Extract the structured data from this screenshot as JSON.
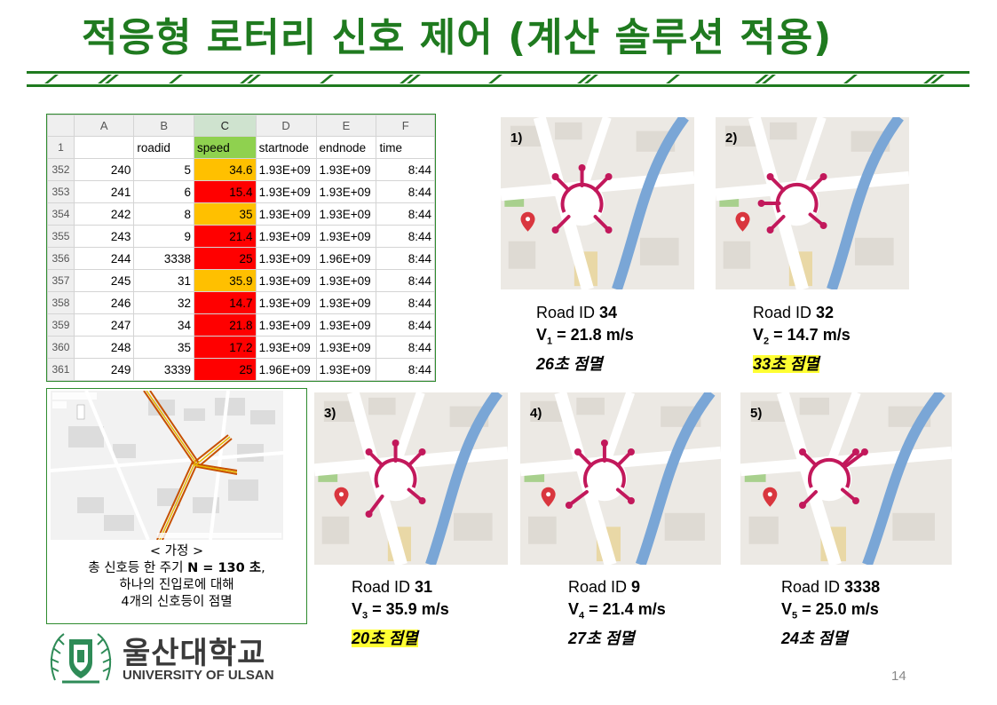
{
  "title": "적응형 로터리 신호 제어 (계산 솔루션 적용)",
  "spreadsheet": {
    "columns": [
      "A",
      "B",
      "C",
      "D",
      "E",
      "F"
    ],
    "header_row_number": "1",
    "headers": [
      "",
      "roadid",
      "speed",
      "startnode",
      "endnode",
      "time"
    ],
    "rows": [
      {
        "rownum": "352",
        "a": "240",
        "roadid": "5",
        "speed": "34.6",
        "speed_color": "#ffc000",
        "startnode": "1.93E+09",
        "endnode": "1.93E+09",
        "time": "8:44"
      },
      {
        "rownum": "353",
        "a": "241",
        "roadid": "6",
        "speed": "15.4",
        "speed_color": "#ff0000",
        "startnode": "1.93E+09",
        "endnode": "1.93E+09",
        "time": "8:44"
      },
      {
        "rownum": "354",
        "a": "242",
        "roadid": "8",
        "speed": "35",
        "speed_color": "#ffc000",
        "startnode": "1.93E+09",
        "endnode": "1.93E+09",
        "time": "8:44"
      },
      {
        "rownum": "355",
        "a": "243",
        "roadid": "9",
        "speed": "21.4",
        "speed_color": "#ff0000",
        "startnode": "1.93E+09",
        "endnode": "1.93E+09",
        "time": "8:44"
      },
      {
        "rownum": "356",
        "a": "244",
        "roadid": "3338",
        "speed": "25",
        "speed_color": "#ff0000",
        "startnode": "1.93E+09",
        "endnode": "1.96E+09",
        "time": "8:44"
      },
      {
        "rownum": "357",
        "a": "245",
        "roadid": "31",
        "speed": "35.9",
        "speed_color": "#ffc000",
        "startnode": "1.93E+09",
        "endnode": "1.93E+09",
        "time": "8:44"
      },
      {
        "rownum": "358",
        "a": "246",
        "roadid": "32",
        "speed": "14.7",
        "speed_color": "#ff0000",
        "startnode": "1.93E+09",
        "endnode": "1.93E+09",
        "time": "8:44"
      },
      {
        "rownum": "359",
        "a": "247",
        "roadid": "34",
        "speed": "21.8",
        "speed_color": "#ff0000",
        "startnode": "1.93E+09",
        "endnode": "1.93E+09",
        "time": "8:44"
      },
      {
        "rownum": "360",
        "a": "248",
        "roadid": "35",
        "speed": "17.2",
        "speed_color": "#ff0000",
        "startnode": "1.93E+09",
        "endnode": "1.93E+09",
        "time": "8:44"
      },
      {
        "rownum": "361",
        "a": "249",
        "roadid": "3339",
        "speed": "25",
        "speed_color": "#ff0000",
        "startnode": "1.96E+09",
        "endnode": "1.93E+09",
        "time": "8:44"
      }
    ]
  },
  "assumption": {
    "line1": "< 가정 >",
    "line2_prefix": "총 신호등 한 주기 ",
    "line2_bold": "N = 130 초",
    "line2_suffix": ",",
    "line3": "하나의 진입로에 대해",
    "line4": "4개의 신호등이 점멸"
  },
  "panels": [
    {
      "label": "1)",
      "road_prefix": "Road ID ",
      "road_id": "34",
      "v_sym": "V",
      "v_sub": "1",
      "v_text": " = 21.8 m/s",
      "time": "26초 점멸",
      "highlight": false
    },
    {
      "label": "2)",
      "road_prefix": "Road ID ",
      "road_id": "32",
      "v_sym": "V",
      "v_sub": "2",
      "v_text": " = 14.7 m/s",
      "time": "33초 점멸",
      "highlight": true
    },
    {
      "label": "3)",
      "road_prefix": "Road ID ",
      "road_id": "31",
      "v_sym": "V",
      "v_sub": "3",
      "v_text": " = 35.9 m/s",
      "time": "20초 점멸",
      "highlight": true
    },
    {
      "label": "4)",
      "road_prefix": "Road ID ",
      "road_id": "9",
      "v_sym": "V",
      "v_sub": "4",
      "v_text": " = 21.4 m/s",
      "time": "27초 점멸",
      "highlight": false
    },
    {
      "label": "5)",
      "road_prefix": "Road ID ",
      "road_id": "3338",
      "v_sym": "V",
      "v_sub": "5",
      "v_text": " = 25.0 m/s",
      "time": "24초 점멸",
      "highlight": false
    }
  ],
  "logo": {
    "korean": "울산대학교",
    "english": "UNIVERSITY OF ULSAN"
  },
  "page_number": "14",
  "colors": {
    "title": "#1f7a1f",
    "border": "#2e8b2e",
    "highlight": "#ffff33",
    "route": "#c2185b",
    "river": "#7aa6d6"
  }
}
